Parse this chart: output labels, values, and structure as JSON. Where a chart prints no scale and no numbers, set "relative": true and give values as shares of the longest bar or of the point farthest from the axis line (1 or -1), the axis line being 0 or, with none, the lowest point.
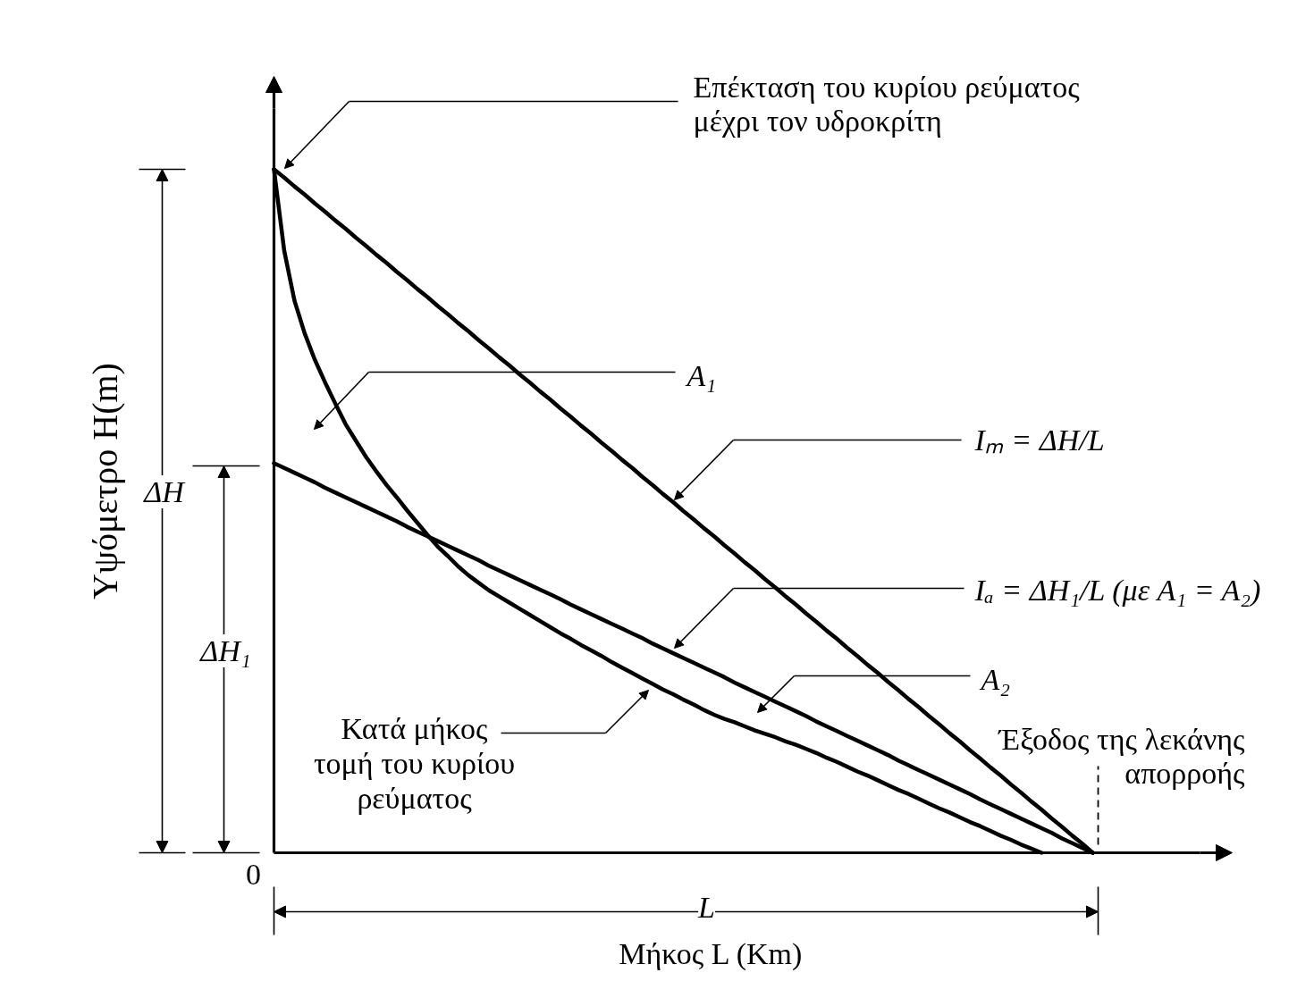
{
  "chart_data": {
    "type": "line",
    "relative": true,
    "xlabel": "Μήκος L (Km)",
    "ylabel": "Υψόμετρο H(m)",
    "line_style": "solid",
    "categories": [
      null,
      null,
      null,
      null,
      null,
      null,
      null,
      null,
      null,
      null,
      null,
      null,
      null,
      null,
      null,
      null,
      null,
      null,
      null,
      null,
      null,
      null,
      null,
      null,
      null,
      null,
      null,
      null,
      null,
      null,
      null,
      null,
      null,
      null,
      null,
      null,
      null,
      null,
      null,
      null,
      null,
      null,
      null,
      null,
      null,
      null,
      null,
      null,
      null,
      null,
      null,
      null,
      null,
      null,
      null,
      null,
      null,
      null,
      null,
      null,
      null,
      null,
      null,
      null,
      null,
      null,
      null,
      null,
      null,
      null,
      null,
      null,
      null,
      null,
      null,
      null,
      null,
      null,
      null,
      null,
      null
    ],
    "series": [
      {
        "color": "#000000",
        "values": [
          1,
          0.988,
          0.975,
          0.963,
          0.95,
          0.938,
          0.925,
          0.913,
          0.9,
          0.888,
          0.875,
          0.863,
          0.85,
          0.838,
          0.825,
          0.813,
          0.8,
          0.788,
          0.775,
          0.763,
          0.75,
          0.738,
          0.725,
          0.713,
          0.7,
          0.688,
          0.675,
          0.663,
          0.65,
          0.638,
          0.625,
          0.613,
          0.6,
          0.588,
          0.575,
          0.563,
          0.55,
          0.538,
          0.525,
          0.513,
          0.5,
          0.488,
          0.475,
          0.463,
          0.45,
          0.438,
          0.425,
          0.413,
          0.4,
          0.388,
          0.375,
          0.363,
          0.35,
          0.338,
          0.325,
          0.313,
          0.3,
          0.288,
          0.275,
          0.263,
          0.25,
          0.238,
          0.225,
          0.213,
          0.2,
          0.188,
          0.175,
          0.163,
          0.15,
          0.138,
          0.125,
          0.113,
          0.1,
          0.088,
          0.075,
          0.063,
          0.05,
          0.038,
          0.025,
          0.013,
          0
        ]
      },
      {
        "color": "#000000",
        "values": [
          0.57,
          0.563,
          0.556,
          0.549,
          0.542,
          0.534,
          0.527,
          0.52,
          0.513,
          0.506,
          0.499,
          0.492,
          0.485,
          0.477,
          0.47,
          0.463,
          0.456,
          0.449,
          0.442,
          0.435,
          0.428,
          0.42,
          0.413,
          0.406,
          0.399,
          0.392,
          0.385,
          0.378,
          0.371,
          0.363,
          0.356,
          0.349,
          0.342,
          0.335,
          0.328,
          0.321,
          0.314,
          0.306,
          0.299,
          0.292,
          0.285,
          0.278,
          0.271,
          0.264,
          0.257,
          0.249,
          0.242,
          0.235,
          0.228,
          0.221,
          0.214,
          0.207,
          0.2,
          0.192,
          0.185,
          0.178,
          0.171,
          0.164,
          0.157,
          0.15,
          0.143,
          0.135,
          0.128,
          0.121,
          0.114,
          0.107,
          0.1,
          0.093,
          0.086,
          0.078,
          0.071,
          0.064,
          0.057,
          0.05,
          0.043,
          0.036,
          0.029,
          0.021,
          0.014,
          0.007,
          0
        ]
      },
      {
        "color": "#000000",
        "values": [
          1,
          0.881,
          0.808,
          0.76,
          0.721,
          0.688,
          0.657,
          0.627,
          0.603,
          0.579,
          0.558,
          0.538,
          0.52,
          0.501,
          0.483,
          0.465,
          0.448,
          0.434,
          0.419,
          0.406,
          0.395,
          0.384,
          0.375,
          0.366,
          0.357,
          0.348,
          0.339,
          0.33,
          0.321,
          0.313,
          0.304,
          0.296,
          0.288,
          0.279,
          0.271,
          0.263,
          0.255,
          0.247,
          0.239,
          0.232,
          0.224,
          0.217,
          0.209,
          0.202,
          0.196,
          0.191,
          0.185,
          0.179,
          0.174,
          0.169,
          0.163,
          0.158,
          0.152,
          0.146,
          0.139,
          0.133,
          0.126,
          0.119,
          0.113,
          0.106,
          0.099,
          0.092,
          0.086,
          0.079,
          0.072,
          0.065,
          0.059,
          0.052,
          0.045,
          0.039,
          0.032,
          0.025,
          0.019,
          0.012,
          0.006,
          0,
          null,
          null,
          null,
          null,
          null
        ]
      }
    ],
    "annotations": [
      "Επέκταση του κυρίου ρεύματος\nμέχρι τον υδροκρίτη",
      "A₁",
      "Iₘ = ΔH/L",
      "Iₐ = ΔH₁/L (με A₁ = A₂)",
      "A₂",
      "Κατά μήκος\nτομή του κυρίου\nρεύματος",
      "Έξοδος της λεκάνης\nαπορροής",
      "ΔH",
      "ΔH₁",
      "L",
      "0"
    ]
  }
}
